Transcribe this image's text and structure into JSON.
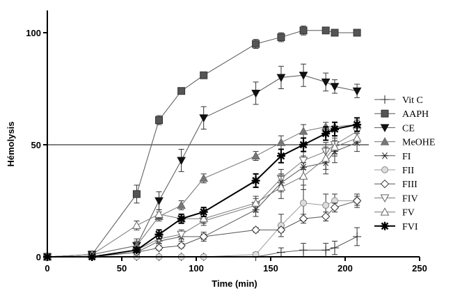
{
  "chart_data": {
    "type": "line",
    "xlabel": "Time (min)",
    "ylabel": "Hémolysis",
    "xlim": [
      0,
      250
    ],
    "ylim": [
      0,
      110
    ],
    "xticks": [
      0,
      50,
      100,
      150,
      200,
      250
    ],
    "yticks": [
      0,
      50,
      100
    ],
    "reference_line_y": 50,
    "grid": false,
    "legend_position": "right",
    "series": [
      {
        "name": "Vit C",
        "marker": "plus",
        "color": "#555555",
        "x": [
          0,
          30,
          60,
          75,
          90,
          105,
          140,
          157,
          172,
          187,
          193,
          208
        ],
        "y": [
          0,
          0,
          0,
          0,
          0,
          0,
          0,
          2,
          3,
          3,
          4,
          9
        ],
        "err": [
          0,
          0,
          0,
          0,
          0,
          0,
          0,
          2,
          3,
          3,
          3,
          4
        ]
      },
      {
        "name": "AAPH",
        "marker": "square",
        "color": "#555555",
        "x": [
          0,
          30,
          60,
          75,
          90,
          105,
          140,
          157,
          172,
          187,
          193,
          208
        ],
        "y": [
          0,
          1,
          28,
          61,
          74,
          81,
          95,
          98,
          101,
          101,
          100,
          100
        ],
        "err": [
          0,
          1,
          4,
          2,
          1,
          1,
          2,
          2,
          2,
          1,
          1,
          1
        ]
      },
      {
        "name": "CE",
        "marker": "triangle-down",
        "color": "#555555",
        "x": [
          0,
          30,
          60,
          75,
          90,
          105,
          140,
          157,
          172,
          187,
          193,
          208
        ],
        "y": [
          0,
          1,
          5,
          25,
          43,
          62,
          73,
          80,
          81,
          78,
          76,
          74
        ],
        "err": [
          0,
          1,
          3,
          4,
          5,
          5,
          5,
          5,
          5,
          4,
          3,
          3
        ]
      },
      {
        "name": "MeOHE",
        "marker": "triangle-up",
        "color": "#707070",
        "x": [
          0,
          30,
          60,
          75,
          90,
          105,
          140,
          157,
          172,
          187,
          193,
          208
        ],
        "y": [
          0,
          1,
          5,
          18,
          23,
          35,
          45,
          51,
          56,
          58,
          58,
          59
        ],
        "err": [
          0,
          1,
          2,
          2,
          2,
          2,
          2,
          3,
          3,
          2,
          2,
          2
        ]
      },
      {
        "name": "FI",
        "marker": "asterisk",
        "color": "#555555",
        "x": [
          0,
          30,
          60,
          75,
          90,
          105,
          140,
          157,
          172,
          187,
          193,
          208
        ],
        "y": [
          0,
          0,
          2,
          7,
          9,
          9,
          21,
          33,
          40,
          42,
          47,
          51
        ],
        "err": [
          0,
          0,
          1,
          1,
          2,
          2,
          3,
          4,
          5,
          5,
          5,
          4
        ]
      },
      {
        "name": "FII",
        "marker": "circle",
        "color": "#999999",
        "x": [
          0,
          30,
          60,
          75,
          90,
          105,
          140,
          157,
          172,
          187,
          193,
          208
        ],
        "y": [
          0,
          0,
          0,
          0,
          0,
          0,
          1,
          14,
          24,
          23,
          25,
          25
        ],
        "err": [
          0,
          0,
          0,
          0,
          0,
          0,
          1,
          5,
          8,
          5,
          3,
          3
        ]
      },
      {
        "name": "FIII",
        "marker": "diamond",
        "color": "#555555",
        "x": [
          0,
          30,
          60,
          75,
          90,
          105,
          140,
          157,
          172,
          187,
          193,
          208
        ],
        "y": [
          0,
          0,
          2,
          4,
          5,
          9,
          12,
          12,
          17,
          18,
          22,
          25
        ],
        "err": [
          0,
          0,
          1,
          1,
          1,
          1,
          1,
          1,
          2,
          2,
          2,
          2
        ]
      },
      {
        "name": "FIV",
        "marker": "triangle-down-open",
        "color": "#777777",
        "x": [
          0,
          30,
          60,
          75,
          90,
          105,
          140,
          157,
          172,
          187,
          193,
          208
        ],
        "y": [
          0,
          0,
          3,
          8,
          10,
          16,
          23,
          35,
          43,
          47,
          50,
          56
        ],
        "err": [
          0,
          0,
          1,
          2,
          2,
          2,
          3,
          4,
          4,
          4,
          4,
          4
        ]
      },
      {
        "name": "FV",
        "marker": "triangle-up-open",
        "color": "#777777",
        "x": [
          0,
          30,
          60,
          75,
          90,
          105,
          140,
          157,
          172,
          187,
          193,
          208
        ],
        "y": [
          0,
          1,
          14,
          19,
          17,
          17,
          24,
          31,
          36,
          44,
          49,
          53
        ],
        "err": [
          0,
          1,
          2,
          2,
          2,
          2,
          3,
          5,
          6,
          5,
          4,
          3
        ]
      },
      {
        "name": "FVI",
        "marker": "bold-star",
        "color": "#000000",
        "x": [
          0,
          30,
          60,
          75,
          90,
          105,
          140,
          157,
          172,
          187,
          193,
          208
        ],
        "y": [
          0,
          0,
          3,
          10,
          17,
          20,
          34,
          45,
          50,
          55,
          57,
          59
        ],
        "err": [
          0,
          0,
          1,
          2,
          2,
          2,
          3,
          3,
          3,
          3,
          3,
          3
        ]
      }
    ]
  }
}
